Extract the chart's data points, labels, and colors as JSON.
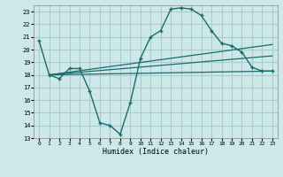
{
  "title": "",
  "xlabel": "Humidex (Indice chaleur)",
  "ylabel": "",
  "bg_color": "#cce8e8",
  "grid_color": "#aacccc",
  "line_color": "#1a6b6e",
  "xlim": [
    -0.5,
    23.5
  ],
  "ylim": [
    13,
    23.5
  ],
  "xticks": [
    0,
    1,
    2,
    3,
    4,
    5,
    6,
    7,
    8,
    9,
    10,
    11,
    12,
    13,
    14,
    15,
    16,
    17,
    18,
    19,
    20,
    21,
    22,
    23
  ],
  "yticks": [
    13,
    14,
    15,
    16,
    17,
    18,
    19,
    20,
    21,
    22,
    23
  ],
  "series1_x": [
    0,
    1,
    2,
    3,
    4,
    5,
    6,
    7,
    8,
    9,
    10,
    11,
    12,
    13,
    14,
    15,
    16,
    17,
    18,
    19,
    20,
    21,
    22,
    23
  ],
  "series1_y": [
    20.7,
    18.0,
    17.7,
    18.5,
    18.5,
    16.7,
    14.2,
    14.0,
    13.3,
    15.8,
    19.3,
    21.0,
    21.5,
    23.2,
    23.3,
    23.2,
    22.7,
    21.5,
    20.5,
    20.3,
    19.8,
    18.6,
    18.3,
    18.3
  ],
  "series2_x": [
    1,
    23
  ],
  "series2_y": [
    18.0,
    18.3
  ],
  "series3_x": [
    1,
    23
  ],
  "series3_y": [
    18.0,
    19.5
  ],
  "series4_x": [
    1,
    23
  ],
  "series4_y": [
    18.0,
    20.4
  ]
}
